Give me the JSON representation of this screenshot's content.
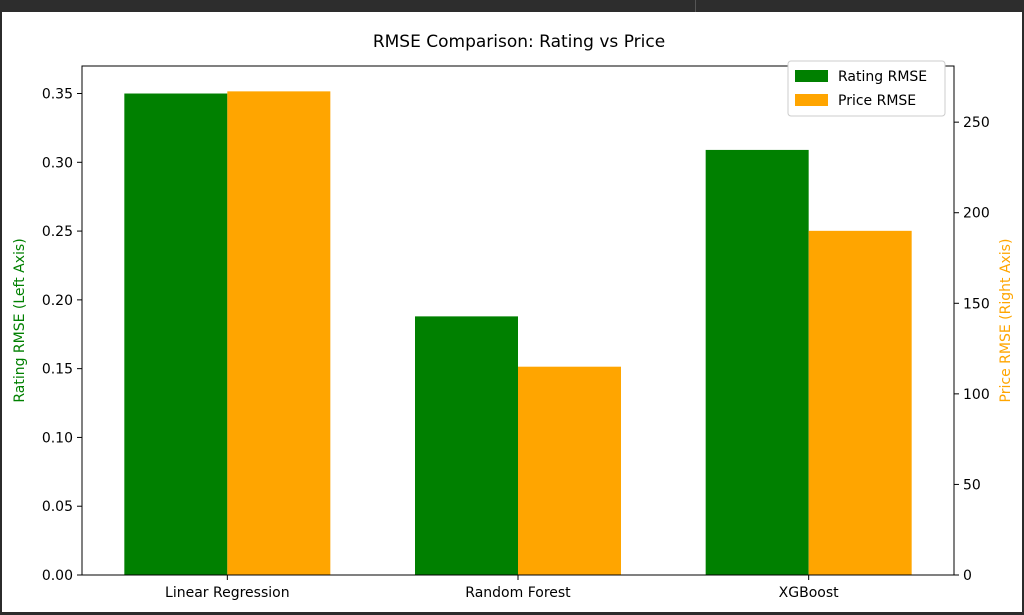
{
  "chart_data": {
    "type": "bar",
    "title": "RMSE Comparison: Rating vs Price",
    "categories": [
      "Linear Regression",
      "Random Forest",
      "XGBoost"
    ],
    "series": [
      {
        "name": "Rating RMSE",
        "axis": "left",
        "color": "#008000",
        "values": [
          0.35,
          0.188,
          0.309
        ]
      },
      {
        "name": "Price RMSE",
        "axis": "right",
        "color": "#FFA500",
        "values": [
          267,
          115,
          190
        ]
      }
    ],
    "ylabel_left": "Rating RMSE (Left Axis)",
    "ylabel_right": "Price RMSE (Right Axis)",
    "ylim_left": [
      0,
      0.37
    ],
    "ylim_right": [
      0,
      281
    ],
    "yticks_left": [
      "0.00",
      "0.05",
      "0.10",
      "0.15",
      "0.20",
      "0.25",
      "0.30",
      "0.35"
    ],
    "yticks_right": [
      "0",
      "50",
      "100",
      "150",
      "200",
      "250"
    ],
    "legend": {
      "position": "top-right"
    },
    "grid": false,
    "ylabel_left_color": "#008000",
    "ylabel_right_color": "#FFA500"
  }
}
